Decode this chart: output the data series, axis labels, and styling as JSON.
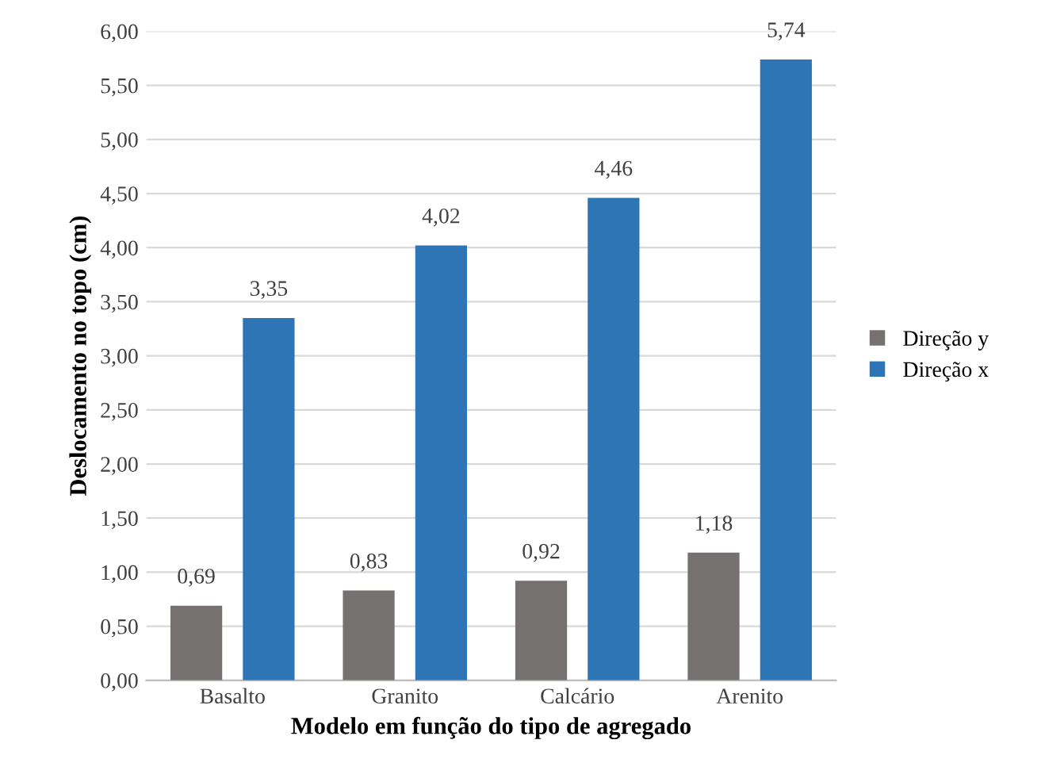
{
  "chart_data": {
    "type": "bar",
    "xlabel": "Modelo em função do tipo de agregado",
    "ylabel": "Deslocamento no topo (cm)",
    "categories": [
      "Basalto",
      "Granito",
      "Calcário",
      "Arenito"
    ],
    "series": [
      {
        "name": "Direção y",
        "color": "#767171",
        "values": [
          0.69,
          0.83,
          0.92,
          1.18
        ],
        "value_labels": [
          "0,69",
          "0,83",
          "0,92",
          "1,18"
        ]
      },
      {
        "name": "Direção x",
        "color": "#2e75b6",
        "values": [
          3.35,
          4.02,
          4.46,
          5.74
        ],
        "value_labels": [
          "3,35",
          "4,02",
          "4,46",
          "5,74"
        ]
      }
    ],
    "ylim": [
      0,
      6
    ],
    "yticks": [
      {
        "value": 0,
        "label": "0,00"
      },
      {
        "value": 0.5,
        "label": "0,50"
      },
      {
        "value": 1,
        "label": "1,00"
      },
      {
        "value": 1.5,
        "label": "1,50"
      },
      {
        "value": 2,
        "label": "2,00"
      },
      {
        "value": 2.5,
        "label": "2,50"
      },
      {
        "value": 3,
        "label": "3,00"
      },
      {
        "value": 3.5,
        "label": "3,50"
      },
      {
        "value": 4,
        "label": "4,00"
      },
      {
        "value": 4.5,
        "label": "4,50"
      },
      {
        "value": 5,
        "label": "5,00"
      },
      {
        "value": 5.5,
        "label": "5,50"
      },
      {
        "value": 6,
        "label": "6,00"
      }
    ],
    "grid": "y",
    "legend": "right"
  }
}
